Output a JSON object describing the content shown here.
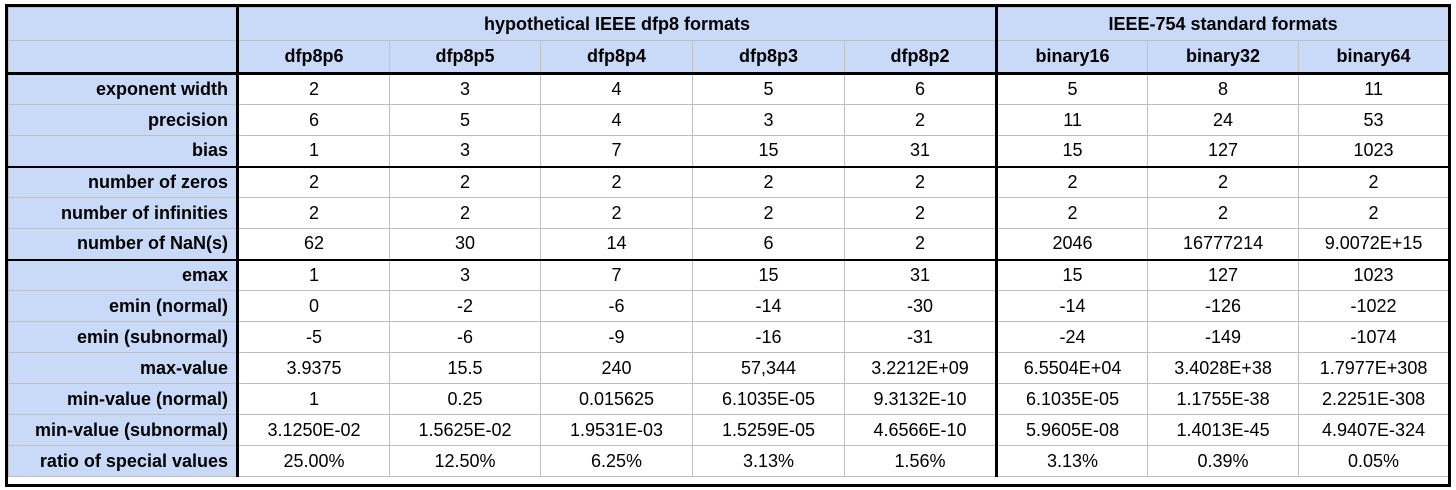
{
  "groups": [
    {
      "label": "hypothetical IEEE dfp8 formats"
    },
    {
      "label": "IEEE-754 standard formats"
    }
  ],
  "columns": [
    "dfp8p6",
    "dfp8p5",
    "dfp8p4",
    "dfp8p3",
    "dfp8p2",
    "binary16",
    "binary32",
    "binary64"
  ],
  "rows": [
    {
      "label": "exponent width",
      "values": [
        "2",
        "3",
        "4",
        "5",
        "6",
        "5",
        "8",
        "11"
      ]
    },
    {
      "label": "precision",
      "values": [
        "6",
        "5",
        "4",
        "3",
        "2",
        "11",
        "24",
        "53"
      ]
    },
    {
      "label": "bias",
      "values": [
        "1",
        "3",
        "7",
        "15",
        "31",
        "15",
        "127",
        "1023"
      ]
    },
    {
      "label": "number of zeros",
      "values": [
        "2",
        "2",
        "2",
        "2",
        "2",
        "2",
        "2",
        "2"
      ]
    },
    {
      "label": "number of infinities",
      "values": [
        "2",
        "2",
        "2",
        "2",
        "2",
        "2",
        "2",
        "2"
      ]
    },
    {
      "label": "number of NaN(s)",
      "values": [
        "62",
        "30",
        "14",
        "6",
        "2",
        "2046",
        "16777214",
        "9.0072E+15"
      ]
    },
    {
      "label": "emax",
      "values": [
        "1",
        "3",
        "7",
        "15",
        "31",
        "15",
        "127",
        "1023"
      ]
    },
    {
      "label": "emin (normal)",
      "values": [
        "0",
        "-2",
        "-6",
        "-14",
        "-30",
        "-14",
        "-126",
        "-1022"
      ]
    },
    {
      "label": "emin (subnormal)",
      "values": [
        "-5",
        "-6",
        "-9",
        "-16",
        "-31",
        "-24",
        "-149",
        "-1074"
      ]
    },
    {
      "label": "max-value",
      "values": [
        "3.9375",
        "15.5",
        "240",
        "57,344",
        "3.2212E+09",
        "6.5504E+04",
        "3.4028E+38",
        "1.7977E+308"
      ]
    },
    {
      "label": "min-value (normal)",
      "values": [
        "1",
        "0.25",
        "0.015625",
        "6.1035E-05",
        "9.3132E-10",
        "6.1035E-05",
        "1.1755E-38",
        "2.2251E-308"
      ]
    },
    {
      "label": "min-value (subnormal)",
      "values": [
        "3.1250E-02",
        "1.5625E-02",
        "1.9531E-03",
        "1.5259E-05",
        "4.6566E-10",
        "5.9605E-08",
        "1.4013E-45",
        "4.9407E-324"
      ]
    },
    {
      "label": "ratio of special values",
      "values": [
        "25.00%",
        "12.50%",
        "6.25%",
        "3.13%",
        "1.56%",
        "3.13%",
        "0.39%",
        "0.05%"
      ]
    }
  ]
}
